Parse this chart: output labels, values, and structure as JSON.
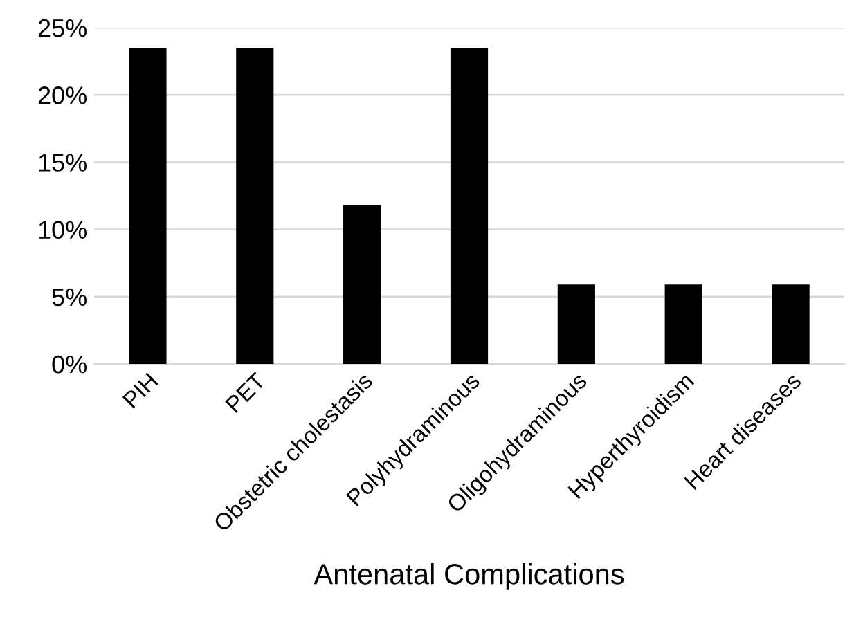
{
  "chart_data": {
    "type": "bar",
    "xlabel": "Antenatal Complications",
    "categories": [
      "PIH",
      "PET",
      "Obstetric cholestasis",
      "Polyhydraminous",
      "Oligohydraminous",
      "Hyperthyroidism",
      "Heart diseases"
    ],
    "values": [
      23.5,
      23.5,
      11.8,
      23.5,
      5.9,
      5.9,
      5.9
    ],
    "color": "#000000",
    "ylim": [
      0,
      25
    ],
    "yticks": [
      {
        "value": 0,
        "label": "0%"
      },
      {
        "value": 5,
        "label": "5%"
      },
      {
        "value": 10,
        "label": "10%"
      },
      {
        "value": 15,
        "label": "15%"
      },
      {
        "value": 20,
        "label": "20%"
      },
      {
        "value": 25,
        "label": "25%"
      }
    ],
    "grid": "y",
    "legend": false
  }
}
